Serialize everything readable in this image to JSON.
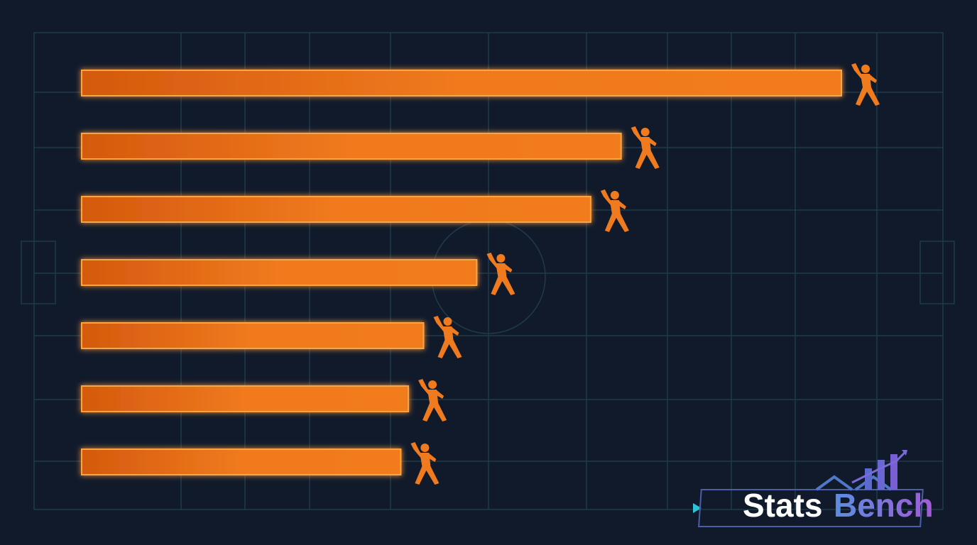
{
  "chart_data": {
    "type": "bar",
    "orientation": "horizontal",
    "categories": [
      null,
      null,
      null,
      null,
      null,
      null,
      null
    ],
    "values": [
      100,
      71,
      67,
      52,
      45,
      43,
      42
    ],
    "color": "#f07a1e",
    "xlim": [
      0,
      100
    ]
  },
  "logo": {
    "first": "Stats",
    "second": "Bench"
  }
}
